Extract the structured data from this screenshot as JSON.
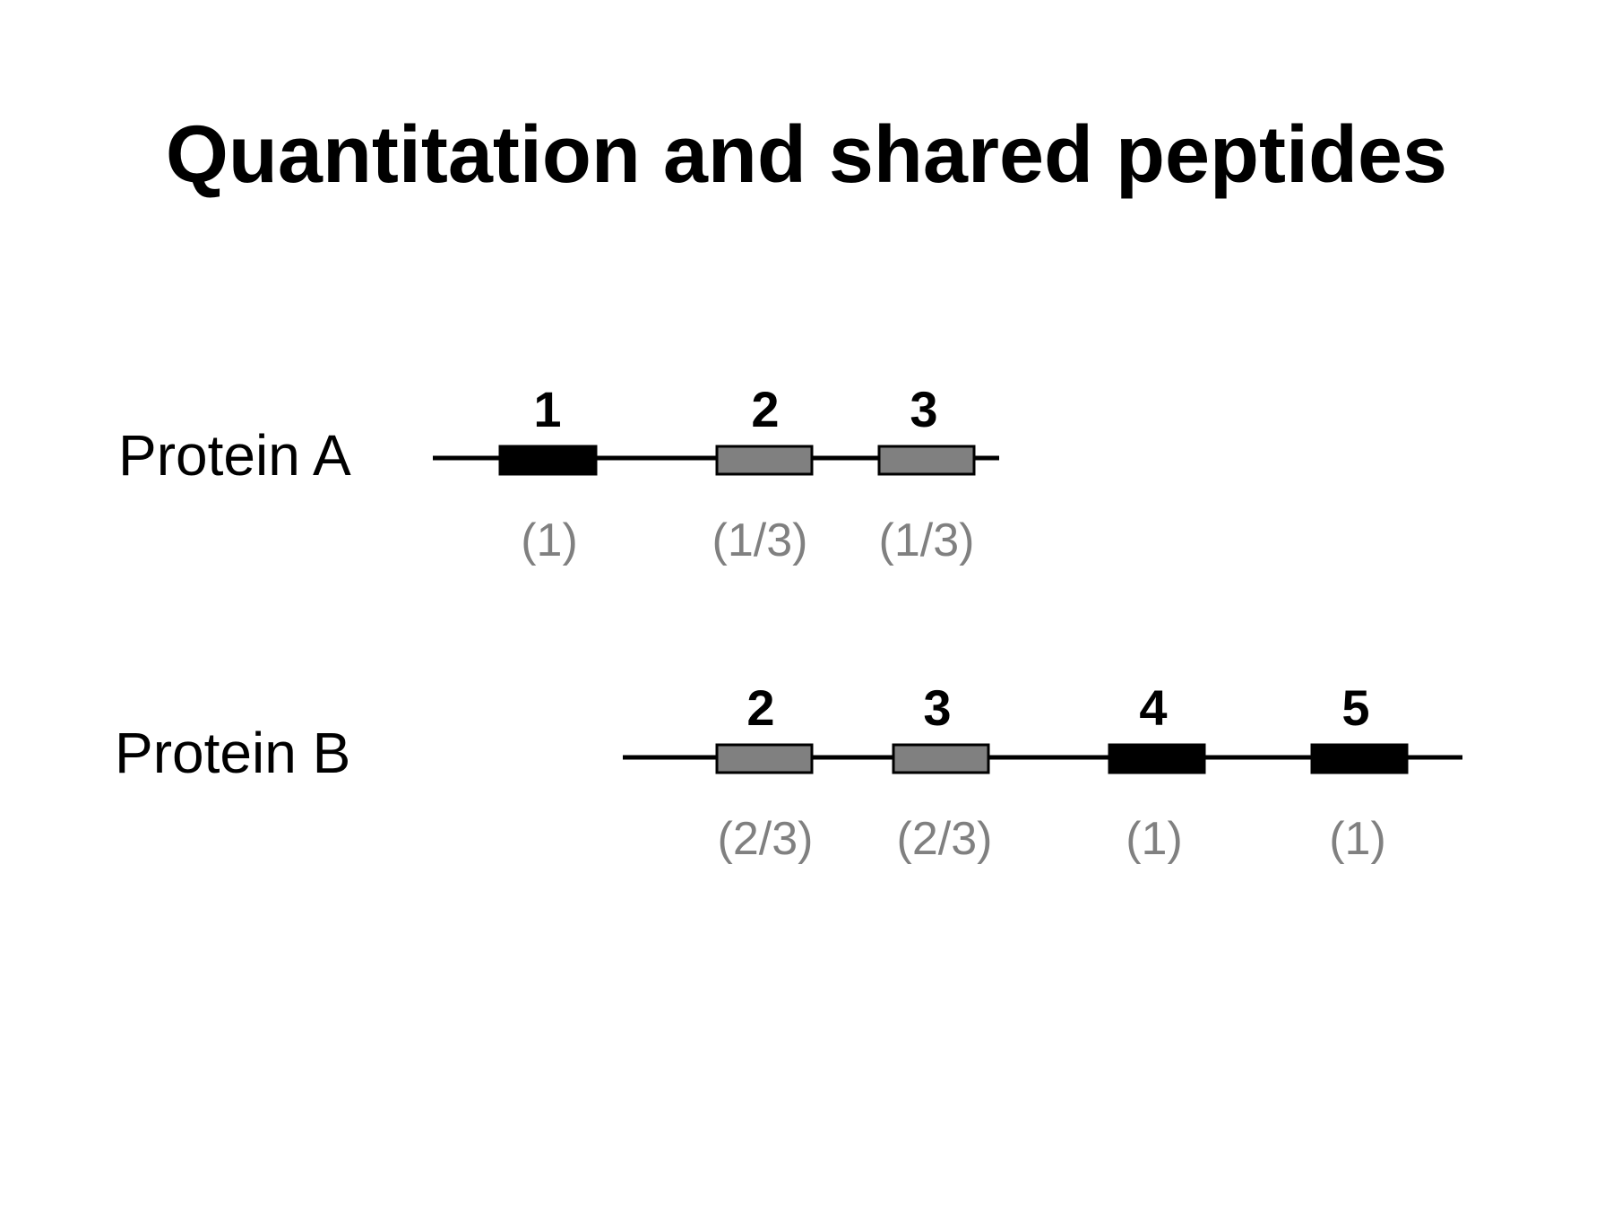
{
  "title": "Quantitation and shared peptides",
  "colors": {
    "unique_peptide": "#000000",
    "shared_peptide": "#808080",
    "backbone": "#000000",
    "fraction_text": "#808080"
  },
  "proteins": [
    {
      "label": "Protein A",
      "peptides": [
        {
          "number": "1",
          "fraction": "(1)",
          "kind": "unique"
        },
        {
          "number": "2",
          "fraction": "(1/3)",
          "kind": "shared"
        },
        {
          "number": "3",
          "fraction": "(1/3)",
          "kind": "shared"
        }
      ]
    },
    {
      "label": "Protein B",
      "peptides": [
        {
          "number": "2",
          "fraction": "(2/3)",
          "kind": "shared"
        },
        {
          "number": "3",
          "fraction": "(2/3)",
          "kind": "shared"
        },
        {
          "number": "4",
          "fraction": "(1)",
          "kind": "unique"
        },
        {
          "number": "5",
          "fraction": "(1)",
          "kind": "unique"
        }
      ]
    }
  ]
}
